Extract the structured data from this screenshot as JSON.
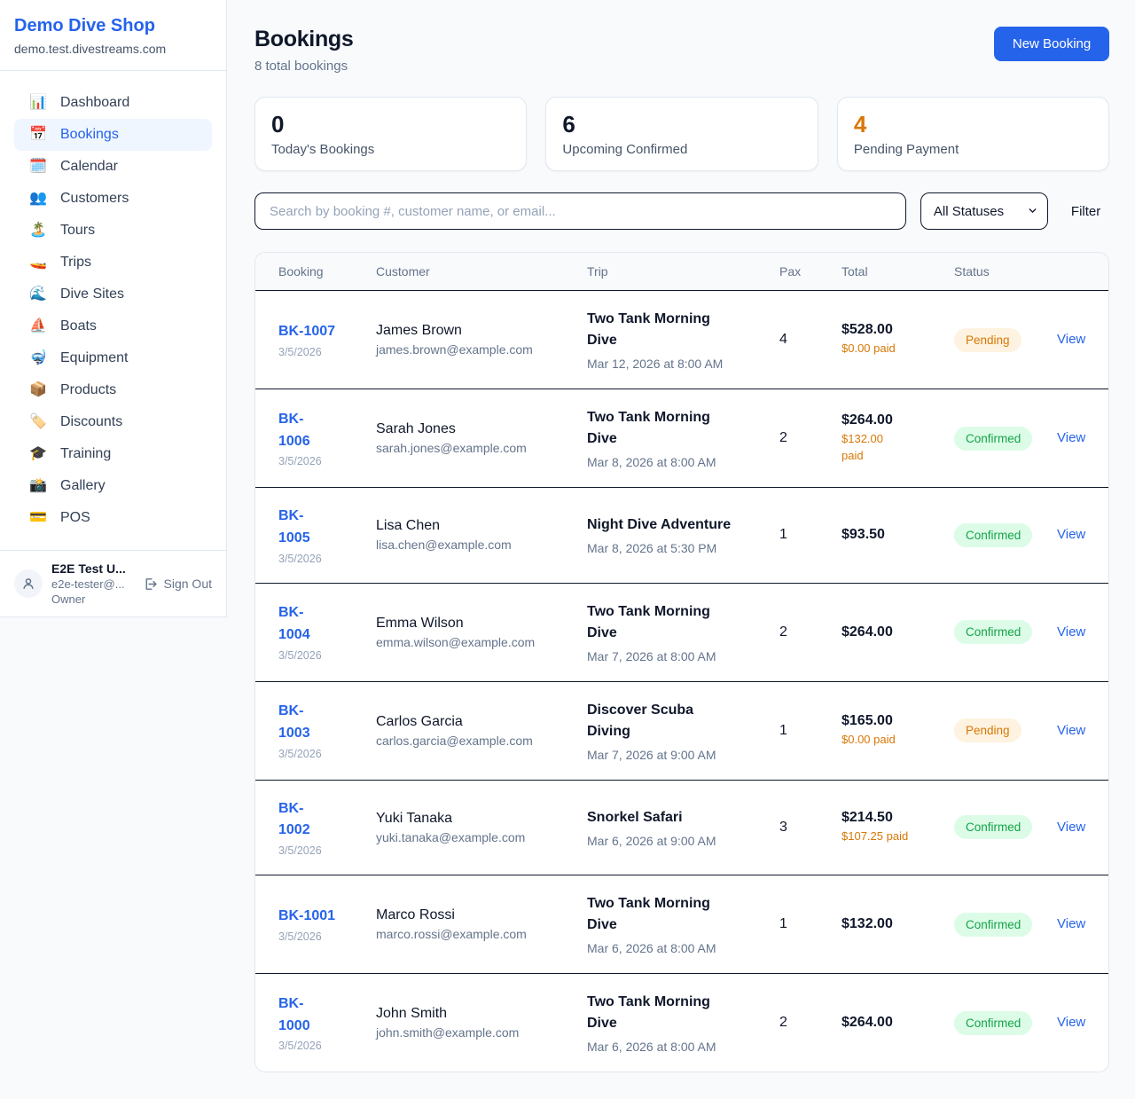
{
  "sidebar": {
    "shop_name": "Demo Dive Shop",
    "domain": "demo.test.divestreams.com",
    "items": [
      {
        "label": "Dashboard",
        "icon": "📊",
        "icon_name": "bar-chart-icon",
        "active": false
      },
      {
        "label": "Bookings",
        "icon": "📅",
        "icon_name": "calendar-icon",
        "active": true
      },
      {
        "label": "Calendar",
        "icon": "🗓️",
        "icon_name": "spiral-calendar-icon",
        "active": false
      },
      {
        "label": "Customers",
        "icon": "👥",
        "icon_name": "people-icon",
        "active": false
      },
      {
        "label": "Tours",
        "icon": "🏝️",
        "icon_name": "island-icon",
        "active": false
      },
      {
        "label": "Trips",
        "icon": "🚤",
        "icon_name": "speedboat-icon",
        "active": false
      },
      {
        "label": "Dive Sites",
        "icon": "🌊",
        "icon_name": "wave-icon",
        "active": false
      },
      {
        "label": "Boats",
        "icon": "⛵",
        "icon_name": "sailboat-icon",
        "active": false
      },
      {
        "label": "Equipment",
        "icon": "🤿",
        "icon_name": "diving-mask-icon",
        "active": false
      },
      {
        "label": "Products",
        "icon": "📦",
        "icon_name": "package-icon",
        "active": false
      },
      {
        "label": "Discounts",
        "icon": "🏷️",
        "icon_name": "tag-icon",
        "active": false
      },
      {
        "label": "Training",
        "icon": "🎓",
        "icon_name": "graduation-cap-icon",
        "active": false
      },
      {
        "label": "Gallery",
        "icon": "📸",
        "icon_name": "camera-icon",
        "active": false
      },
      {
        "label": "POS",
        "icon": "💳",
        "icon_name": "credit-card-icon",
        "active": false
      }
    ],
    "user": {
      "name": "E2E Test U...",
      "email": "e2e-tester@...",
      "role": "Owner",
      "sign_out_label": "Sign Out"
    }
  },
  "header": {
    "title": "Bookings",
    "subtitle": "8 total bookings",
    "new_booking_label": "New Booking"
  },
  "stats": [
    {
      "value": "0",
      "label": "Today's Bookings",
      "value_color": "#0f172a"
    },
    {
      "value": "6",
      "label": "Upcoming Confirmed",
      "value_color": "#0f172a"
    },
    {
      "value": "4",
      "label": "Pending Payment",
      "value_color": "#d97706"
    }
  ],
  "filters": {
    "search_placeholder": "Search by booking #, customer name, or email...",
    "status_selected": "All Statuses",
    "filter_label": "Filter"
  },
  "table": {
    "columns": [
      "Booking",
      "Customer",
      "Trip",
      "Pax",
      "Total",
      "Status"
    ],
    "view_label": "View",
    "rows": [
      {
        "id": "BK-1007",
        "date": "3/5/2026",
        "customer": "James Brown",
        "email": "james.brown@example.com",
        "trip": "Two Tank Morning\nDive",
        "time": "Mar 12, 2026 at 8:00 AM",
        "pax": "4",
        "total": "$528.00",
        "paid": "$0.00 paid",
        "status": "Pending"
      },
      {
        "id": "BK-\n1006",
        "date": "3/5/2026",
        "customer": "Sarah Jones",
        "email": "sarah.jones@example.com",
        "trip": "Two Tank Morning\nDive",
        "time": "Mar 8, 2026 at 8:00 AM",
        "pax": "2",
        "total": "$264.00",
        "paid": "$132.00\npaid",
        "status": "Confirmed"
      },
      {
        "id": "BK-\n1005",
        "date": "3/5/2026",
        "customer": "Lisa Chen",
        "email": "lisa.chen@example.com",
        "trip": "Night Dive Adventure",
        "time": "Mar 8, 2026 at 5:30 PM",
        "pax": "1",
        "total": "$93.50",
        "paid": null,
        "status": "Confirmed"
      },
      {
        "id": "BK-\n1004",
        "date": "3/5/2026",
        "customer": "Emma Wilson",
        "email": "emma.wilson@example.com",
        "trip": "Two Tank Morning\nDive",
        "time": "Mar 7, 2026 at 8:00 AM",
        "pax": "2",
        "total": "$264.00",
        "paid": null,
        "status": "Confirmed"
      },
      {
        "id": "BK-\n1003",
        "date": "3/5/2026",
        "customer": "Carlos Garcia",
        "email": "carlos.garcia@example.com",
        "trip": "Discover Scuba\nDiving",
        "time": "Mar 7, 2026 at 9:00 AM",
        "pax": "1",
        "total": "$165.00",
        "paid": "$0.00 paid",
        "status": "Pending"
      },
      {
        "id": "BK-\n1002",
        "date": "3/5/2026",
        "customer": "Yuki Tanaka",
        "email": "yuki.tanaka@example.com",
        "trip": "Snorkel Safari",
        "time": "Mar 6, 2026 at 9:00 AM",
        "pax": "3",
        "total": "$214.50",
        "paid": "$107.25 paid",
        "status": "Confirmed"
      },
      {
        "id": "BK-1001",
        "date": "3/5/2026",
        "customer": "Marco Rossi",
        "email": "marco.rossi@example.com",
        "trip": "Two Tank Morning\nDive",
        "time": "Mar 6, 2026 at 8:00 AM",
        "pax": "1",
        "total": "$132.00",
        "paid": null,
        "status": "Confirmed"
      },
      {
        "id": "BK-\n1000",
        "date": "3/5/2026",
        "customer": "John Smith",
        "email": "john.smith@example.com",
        "trip": "Two Tank Morning\nDive",
        "time": "Mar 6, 2026 at 8:00 AM",
        "pax": "2",
        "total": "$264.00",
        "paid": null,
        "status": "Confirmed"
      }
    ]
  },
  "colors": {
    "accent": "#2563eb",
    "page_background": "#f8fafc",
    "card_border": "#e2e8f0",
    "row_divider": "#0f172a",
    "pending_badge_bg": "#fdf3e0",
    "pending_badge_text": "#d97706",
    "confirmed_badge_bg": "#dcfce7",
    "confirmed_badge_text": "#16a34a",
    "paid_text": "#d97706",
    "muted_text": "#64748b"
  }
}
